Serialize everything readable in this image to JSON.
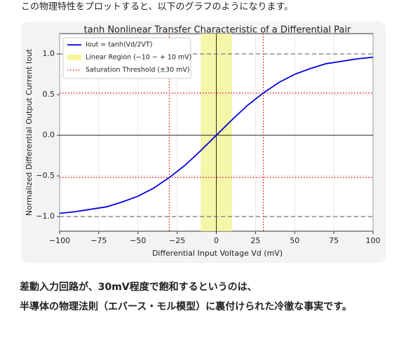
{
  "intro": "この物理特性をプロットすると、以下のグラフのようになります。",
  "conclusion": [
    "差動入力回路が、30mV程度で飽和するというのは、",
    "半導体の物理法則（エバース・モル模型）に裏付けられた冷徹な事実です。"
  ],
  "chart_data": {
    "type": "line",
    "title": "tanh Nonlinear Transfer Characteristic of a Differential Pair",
    "x_label": "Differential Input Voltage Vd (mV)",
    "y_label": "Normalized Differential Output Current Iout",
    "x": [
      -100,
      -90,
      -80,
      -70,
      -60,
      -50,
      -40,
      -30,
      -20,
      -10,
      0,
      10,
      20,
      30,
      40,
      50,
      60,
      70,
      80,
      90,
      100
    ],
    "series": [
      {
        "name": "Iout = tanh(Vd/2VT)",
        "color": "#0000e0",
        "values": [
          -0.96,
          -0.94,
          -0.91,
          -0.88,
          -0.82,
          -0.75,
          -0.65,
          -0.52,
          -0.37,
          -0.19,
          0,
          0.19,
          0.37,
          0.52,
          0.65,
          0.75,
          0.82,
          0.88,
          0.91,
          0.94,
          0.96
        ]
      }
    ],
    "region": {
      "name": "Linear Region (−10 ~ + 10 mV)",
      "color": "#f5f59a",
      "x": [
        -10,
        10
      ]
    },
    "threshold": {
      "name": "Saturation Threshold (±30 mV)",
      "color": "#e00000",
      "x": [
        -30,
        30
      ],
      "y": [
        -0.52,
        0.52
      ]
    },
    "asymptotes": [
      -1,
      1
    ],
    "xlim": [
      -100,
      100
    ],
    "ylim": [
      -1.18,
      1.25
    ],
    "xticks": [
      {
        "value": -100,
        "label": "−100"
      },
      {
        "value": -75,
        "label": "−75"
      },
      {
        "value": -50,
        "label": "−50"
      },
      {
        "value": -25,
        "label": "−25"
      },
      0,
      25,
      50,
      75,
      100
    ],
    "yticks": [
      {
        "value": -1,
        "label": "−1.0"
      },
      {
        "value": -0.5,
        "label": "−0.5"
      },
      {
        "value": 0,
        "label": "0.0"
      },
      {
        "value": 0.5,
        "label": "0.5"
      },
      {
        "value": 1,
        "label": "1.0"
      }
    ],
    "grid": true,
    "legend": "upper left"
  }
}
